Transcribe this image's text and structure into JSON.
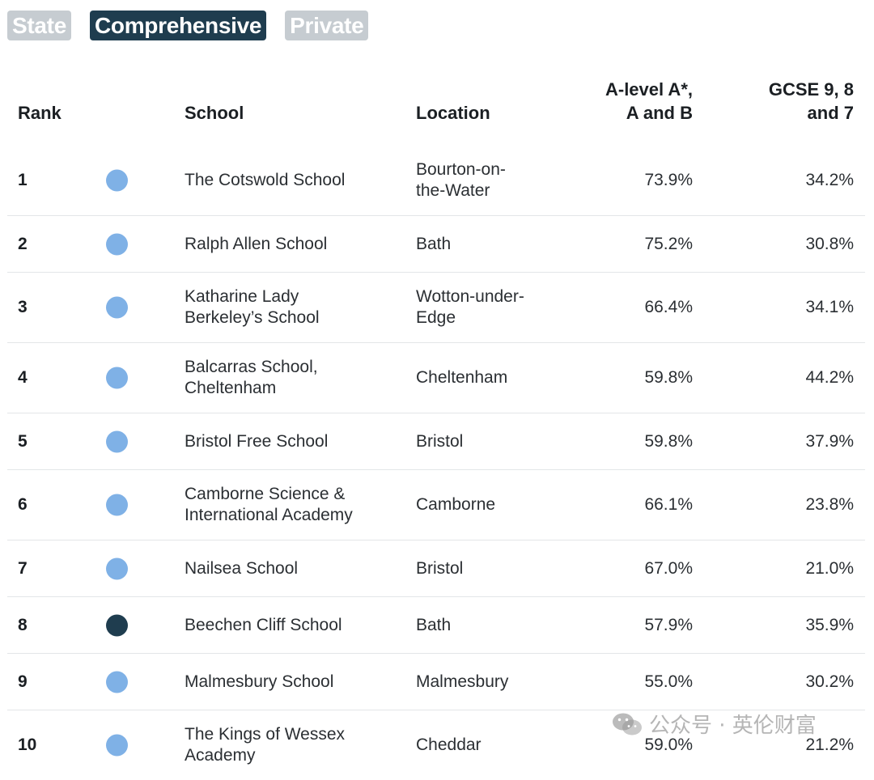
{
  "filters": [
    {
      "label": "State",
      "active": false
    },
    {
      "label": "Comprehensive",
      "active": true
    },
    {
      "label": "Private",
      "active": false
    }
  ],
  "table": {
    "headers": {
      "rank": "Rank",
      "school": "School",
      "location": "Location",
      "alevel_line1": "A-level A*,",
      "alevel_line2": "A and B",
      "gcse_line1": "GCSE 9, 8",
      "gcse_line2": "and 7"
    },
    "rows": [
      {
        "rank": "1",
        "school_l1": "The Cotswold School",
        "school_l2": "",
        "loc_l1": "Bourton-on-",
        "loc_l2": "the-Water",
        "alevel": "73.9%",
        "gcse": "34.2%",
        "dot": "light"
      },
      {
        "rank": "2",
        "school_l1": "Ralph Allen School",
        "school_l2": "",
        "loc_l1": "Bath",
        "loc_l2": "",
        "alevel": "75.2%",
        "gcse": "30.8%",
        "dot": "light"
      },
      {
        "rank": "3",
        "school_l1": "Katharine Lady",
        "school_l2": "Berkeley’s School",
        "loc_l1": "Wotton-under-",
        "loc_l2": "Edge",
        "alevel": "66.4%",
        "gcse": "34.1%",
        "dot": "light"
      },
      {
        "rank": "4",
        "school_l1": "Balcarras School,",
        "school_l2": "Cheltenham",
        "loc_l1": "Cheltenham",
        "loc_l2": "",
        "alevel": "59.8%",
        "gcse": "44.2%",
        "dot": "light"
      },
      {
        "rank": "5",
        "school_l1": "Bristol Free School",
        "school_l2": "",
        "loc_l1": "Bristol",
        "loc_l2": "",
        "alevel": "59.8%",
        "gcse": "37.9%",
        "dot": "light"
      },
      {
        "rank": "6",
        "school_l1": "Camborne Science &",
        "school_l2": "International Academy",
        "loc_l1": "Camborne",
        "loc_l2": "",
        "alevel": "66.1%",
        "gcse": "23.8%",
        "dot": "light"
      },
      {
        "rank": "7",
        "school_l1": "Nailsea School",
        "school_l2": "",
        "loc_l1": "Bristol",
        "loc_l2": "",
        "alevel": "67.0%",
        "gcse": "21.0%",
        "dot": "light"
      },
      {
        "rank": "8",
        "school_l1": "Beechen Cliff School",
        "school_l2": "",
        "loc_l1": "Bath",
        "loc_l2": "",
        "alevel": "57.9%",
        "gcse": "35.9%",
        "dot": "dark"
      },
      {
        "rank": "9",
        "school_l1": "Malmesbury School",
        "school_l2": "",
        "loc_l1": "Malmesbury",
        "loc_l2": "",
        "alevel": "55.0%",
        "gcse": "30.2%",
        "dot": "light"
      },
      {
        "rank": "10",
        "school_l1": "The Kings of Wessex",
        "school_l2": "Academy",
        "loc_l1": "Cheddar",
        "loc_l2": "",
        "alevel": "59.0%",
        "gcse": "21.2%",
        "dot": "light"
      }
    ]
  },
  "watermark": {
    "text": "公众号 · 英伦财富",
    "icon": "wechat-icon"
  },
  "colors": {
    "active_tab": "#1f3d4f",
    "inactive_tab": "#c6ccd1",
    "dot_light": "#7fb1e6",
    "dot_dark": "#1f3d4f"
  }
}
